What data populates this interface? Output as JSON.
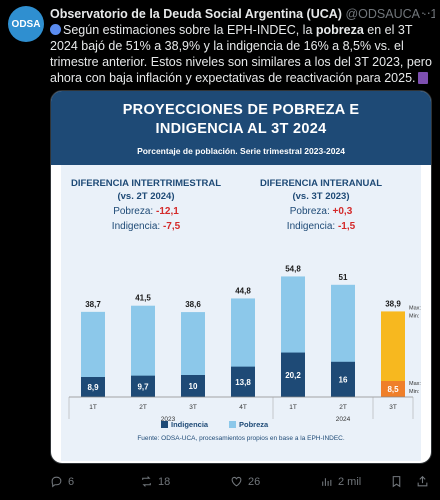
{
  "tweet": {
    "author_name": "Observatorio de la Deuda Social Argentina (UCA)",
    "handle": "@ODSAUCA",
    "time": "· 14h",
    "avatar_text": "ODSA",
    "text_part1": "Según estimaciones sobre la EPH-INDEC, la ",
    "text_bold": "pobreza",
    "text_part2": " en el 3T 2024 bajó de 51% a 38,9% y la indigencia de 16% a 8,5% vs. el trimestre anterior. Estos niveles son similares a los del 3T 2023, pero ahora con baja inflación y expectativas de reactivación para 2025."
  },
  "card": {
    "title_line1": "PROYECCIONES DE POBREZA E",
    "title_line2": "INDIGENCIA AL 3T 2024",
    "subtitle": "Porcentaje de población. Serie trimestral 2023-2024",
    "left_title1": "DIFERENCIA INTERTRIMESTRAL",
    "left_title2": "(vs. 2T 2024)",
    "left_pobreza_label": "Pobreza: ",
    "left_pobreza_value": "-12,1",
    "left_indigencia_label": "Indigencia: ",
    "left_indigencia_value": "-7,5",
    "right_title1": "DIFERENCIA INTERANUAL",
    "right_title2": "(vs. 3T 2023)",
    "right_pobreza_label": "Pobreza: ",
    "right_pobreza_value": "+0,3",
    "right_indigencia_label": "Indigencia: ",
    "right_indigencia_value": "-1,5",
    "source": "Fuente:  ODSA-UCA, procesamientos propios en base a la EPH-INDEC."
  },
  "chart_data": {
    "type": "bar",
    "categories": [
      "1T",
      "2T",
      "3T",
      "4T",
      "1T",
      "2T",
      "3T"
    ],
    "years": [
      {
        "label": "2023",
        "span": [
          0,
          3
        ]
      },
      {
        "label": "2024",
        "span": [
          4,
          6
        ]
      }
    ],
    "series": [
      {
        "name": "Pobreza",
        "values": [
          38.7,
          41.5,
          38.6,
          44.8,
          54.8,
          51,
          38.9
        ],
        "labels": [
          "38,7",
          "41,5",
          "38,6",
          "44,8",
          "54,8",
          "51",
          "38,9"
        ]
      },
      {
        "name": "Indigencia",
        "values": [
          8.9,
          9.7,
          10,
          13.8,
          20.2,
          16,
          8.5
        ],
        "labels": [
          "8,9",
          "9,7",
          "10",
          "13,8",
          "20,2",
          "16",
          "8,5"
        ]
      }
    ],
    "projection_annotations": {
      "pobreza": [
        "Max: 41,5",
        "Min: 37,6"
      ],
      "indigencia": [
        "Max: 9,5",
        "Min: 8,1"
      ]
    },
    "ylim": [
      0,
      60
    ],
    "colors": {
      "pobreza": "#8cc8ea",
      "indigencia": "#1e4a76",
      "proj_pobreza": "#f7b81f",
      "proj_indigencia": "#ef7f2a"
    }
  },
  "actions": {
    "replies": "6",
    "retweets": "18",
    "likes": "26",
    "views": "2 mil"
  }
}
